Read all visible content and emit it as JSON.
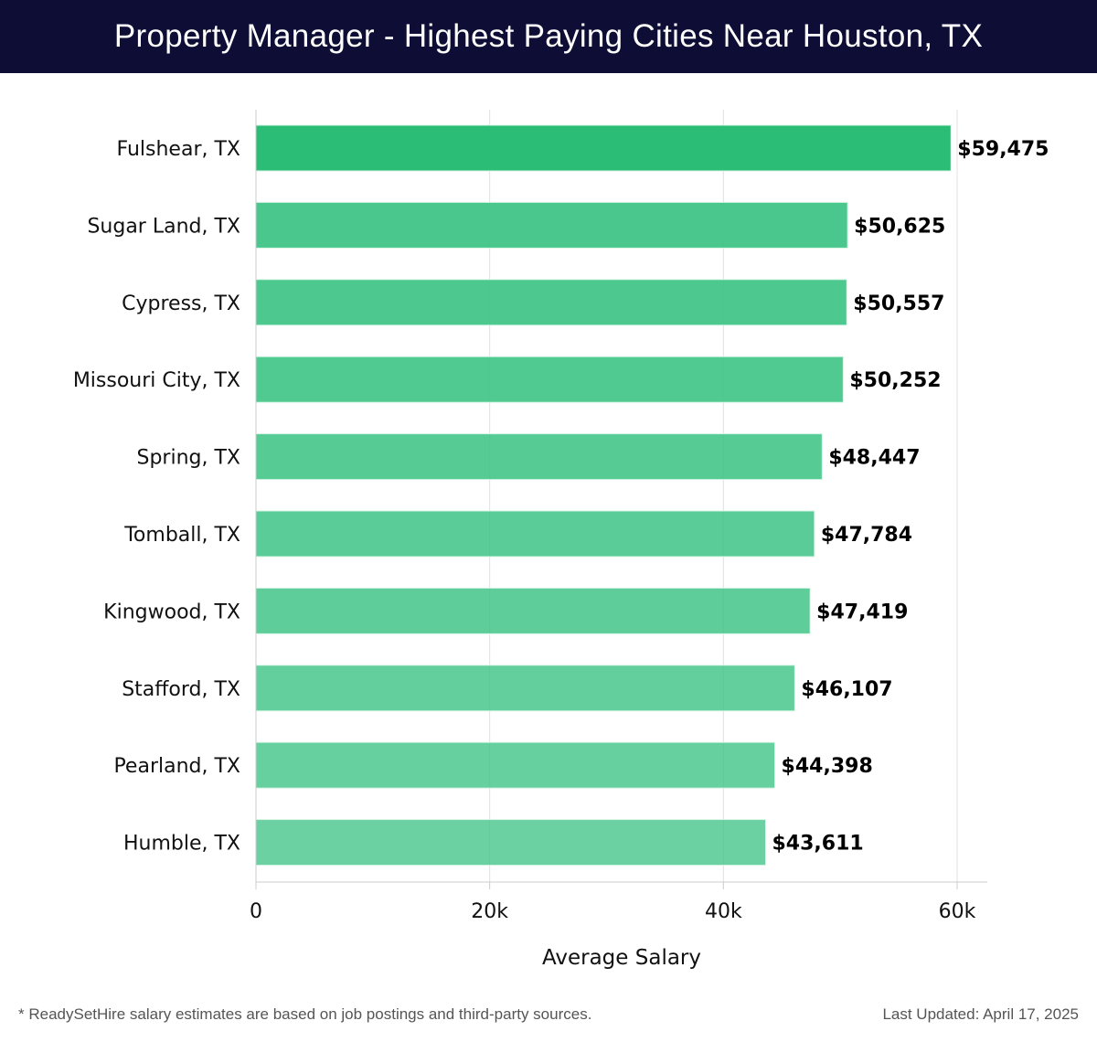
{
  "header": {
    "title": "Property Manager - Highest Paying Cities Near Houston, TX"
  },
  "chart_data": {
    "type": "bar",
    "orientation": "horizontal",
    "title": "Property Manager - Highest Paying Cities Near Houston, TX",
    "xlabel": "Average Salary",
    "ylabel": "",
    "xlim": [
      0,
      62500
    ],
    "xticks": [
      0,
      20000,
      40000,
      60000
    ],
    "xtick_labels": [
      "0",
      "20k",
      "40k",
      "60k"
    ],
    "grid": true,
    "categories": [
      "Fulshear, TX",
      "Sugar Land, TX",
      "Cypress, TX",
      "Missouri City, TX",
      "Spring, TX",
      "Tomball, TX",
      "Kingwood, TX",
      "Stafford, TX",
      "Pearland, TX",
      "Humble, TX"
    ],
    "values": [
      59475,
      50625,
      50557,
      50252,
      48447,
      47784,
      47419,
      46107,
      44398,
      43611
    ],
    "value_labels": [
      "$59,475",
      "$50,625",
      "$50,557",
      "$50,252",
      "$48,447",
      "$47,784",
      "$47,419",
      "$46,107",
      "$44,398",
      "$43,611"
    ],
    "colors": {
      "top_bar": "#2bbd76",
      "bars": "#3fc486",
      "grid": "#e0e0e0",
      "axis": "#cccccc"
    }
  },
  "footer": {
    "note": "* ReadySetHire salary estimates are based on job postings and third-party sources.",
    "last_updated": "Last Updated: April 17, 2025"
  }
}
